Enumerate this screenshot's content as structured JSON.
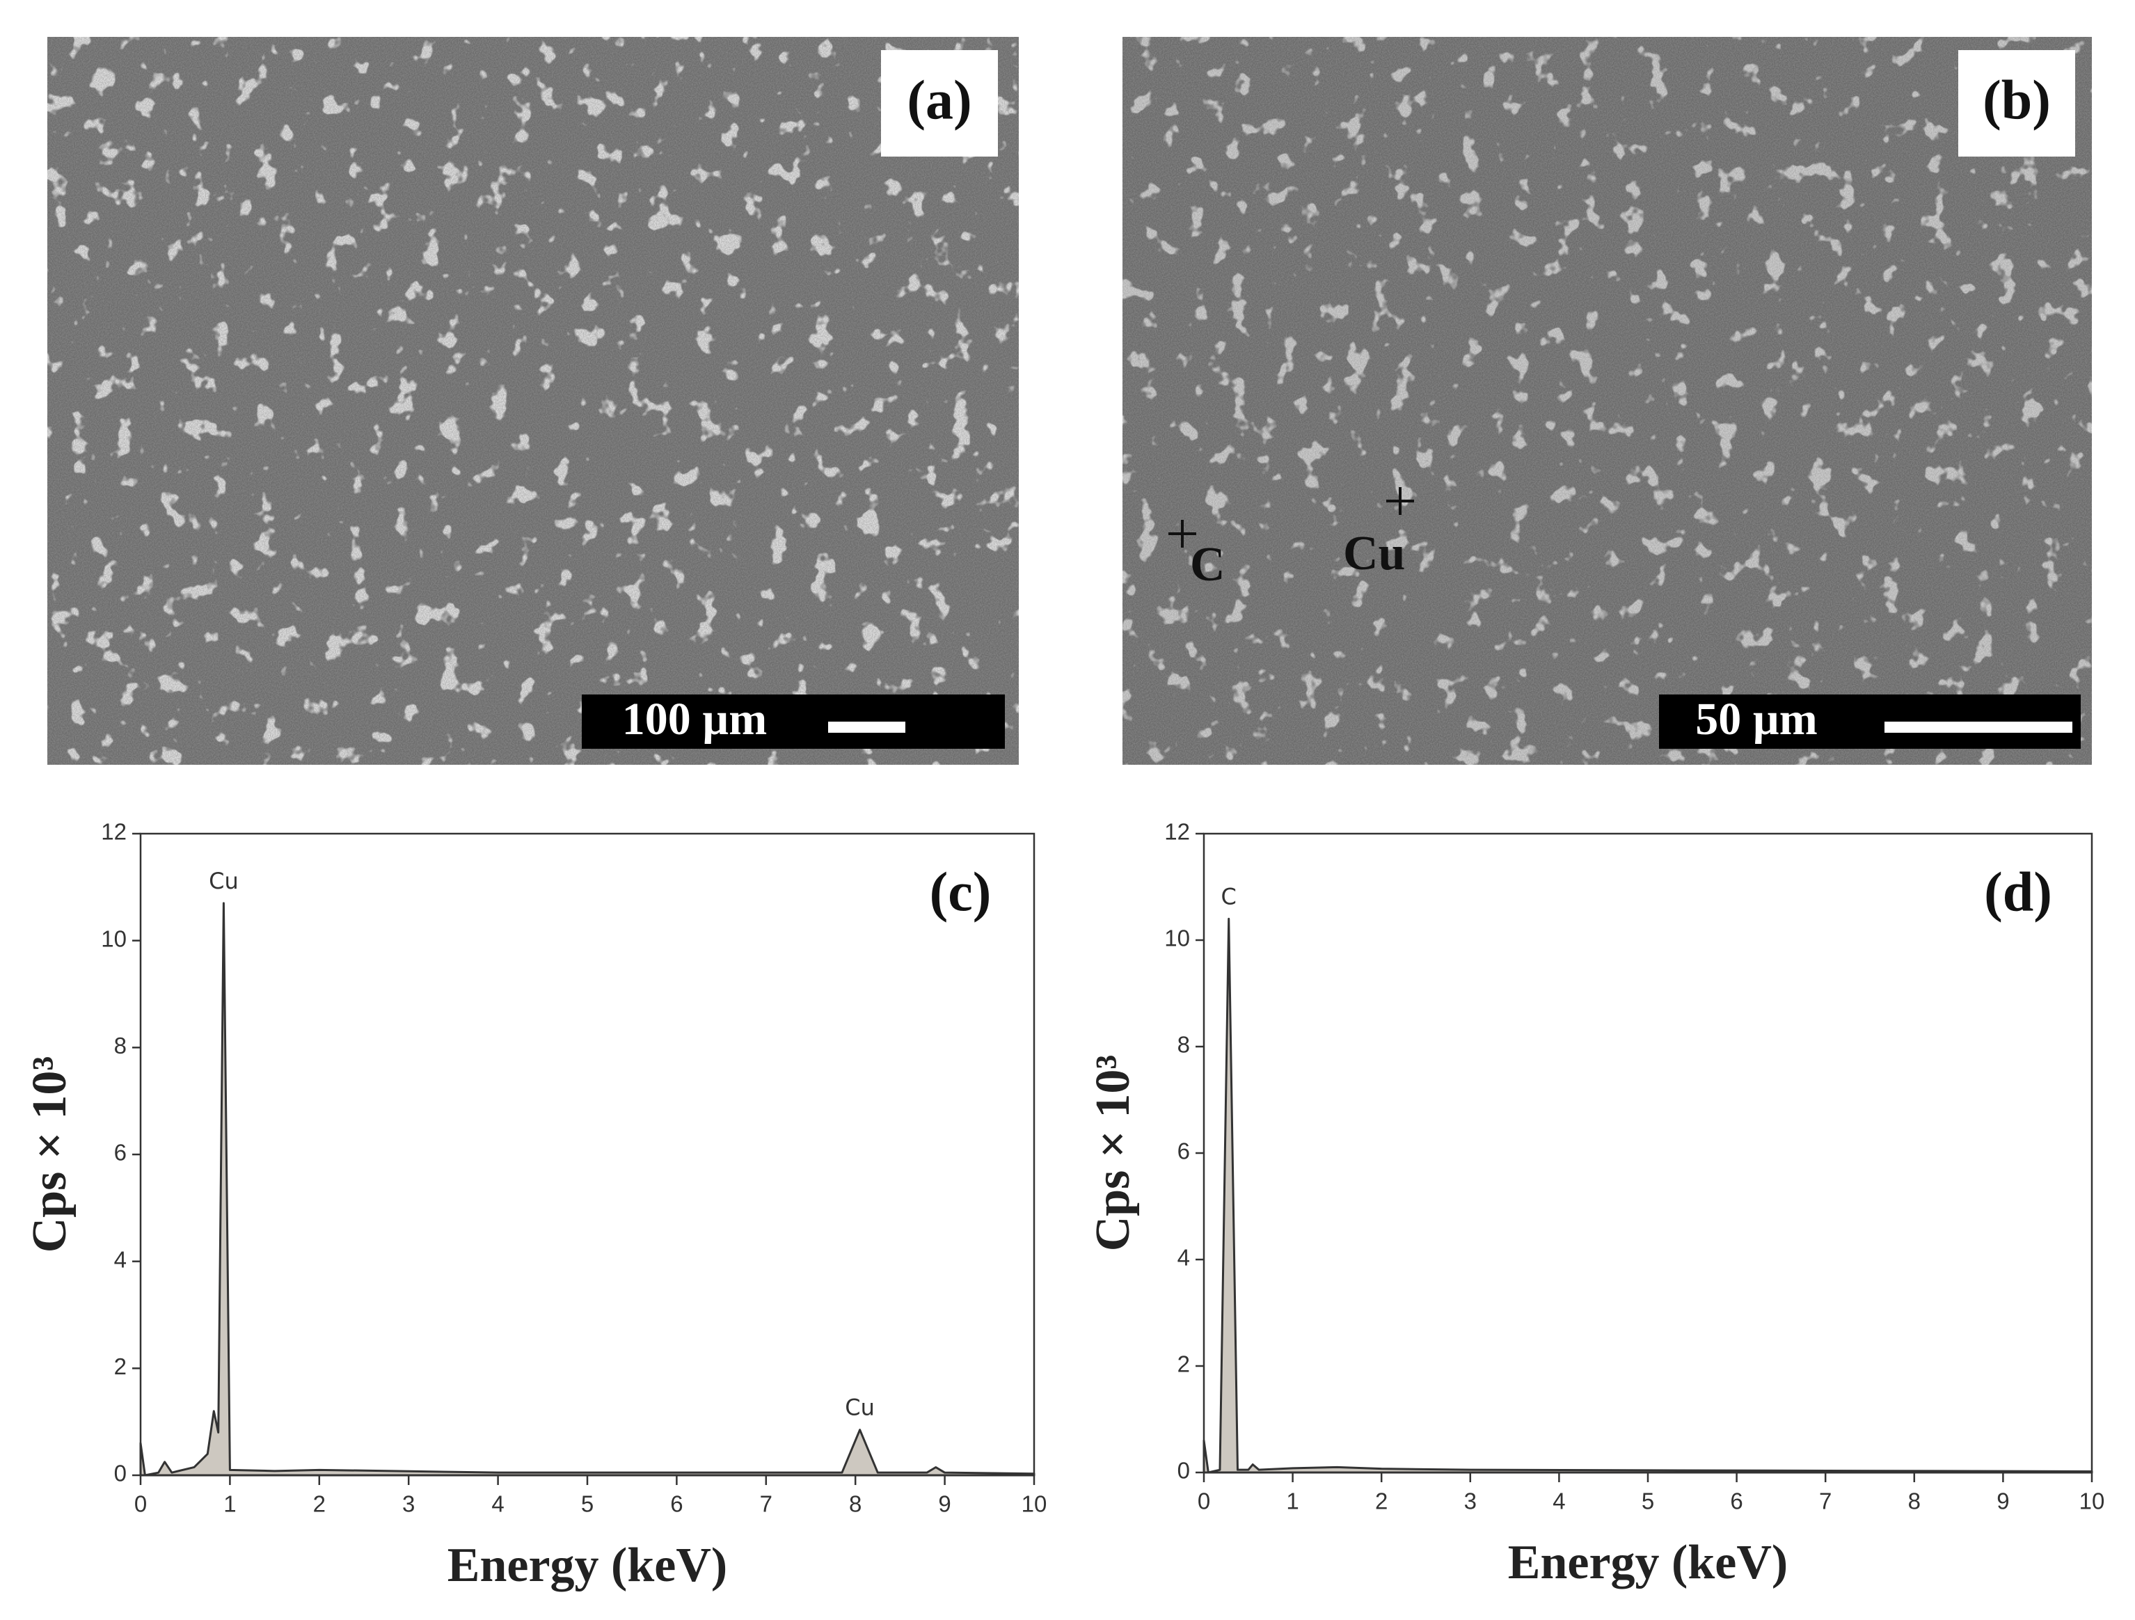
{
  "images": [
    {
      "label": "(a)",
      "scale_bar": "100 µm"
    },
    {
      "label": "(b)",
      "scale_bar": "50 µm",
      "markers": [
        {
          "text": "C"
        },
        {
          "text": "Cu"
        }
      ]
    }
  ],
  "chart_data": [
    {
      "type": "area",
      "label": "(c)",
      "xlabel": "Energy (keV)",
      "ylabel": "Cps × 10³",
      "color": "#cdc8c0",
      "x": [
        0,
        0.05,
        0.2,
        0.27,
        0.35,
        0.6,
        0.75,
        0.82,
        0.87,
        0.93,
        1.0,
        1.5,
        2.0,
        4.0,
        7.85,
        8.05,
        8.25,
        8.8,
        8.9,
        9.0,
        10
      ],
      "values": [
        0.6,
        0.0,
        0.05,
        0.25,
        0.05,
        0.15,
        0.4,
        1.2,
        0.8,
        10.7,
        0.1,
        0.08,
        0.1,
        0.05,
        0.05,
        0.85,
        0.05,
        0.05,
        0.15,
        0.05,
        0.03
      ],
      "annotations": [
        {
          "text": "Cu",
          "x": 0.93,
          "y": 10.7
        },
        {
          "text": "Cu",
          "x": 8.05,
          "y": 0.85
        }
      ],
      "xlim": [
        0,
        10
      ],
      "ylim": [
        0,
        12
      ],
      "xticks": [
        0,
        1,
        2,
        3,
        4,
        5,
        6,
        7,
        8,
        9,
        10
      ],
      "yticks": [
        0,
        2,
        4,
        6,
        8,
        10,
        12
      ]
    },
    {
      "type": "area",
      "label": "(d)",
      "xlabel": "Energy (keV)",
      "ylabel": "Cps × 10³",
      "color": "#cdc8c0",
      "x": [
        0,
        0.05,
        0.18,
        0.28,
        0.38,
        0.5,
        0.55,
        0.62,
        1.0,
        1.5,
        2.0,
        3.0,
        10
      ],
      "values": [
        0.6,
        0.0,
        0.05,
        10.4,
        0.05,
        0.05,
        0.15,
        0.05,
        0.08,
        0.1,
        0.07,
        0.05,
        0.02
      ],
      "annotations": [
        {
          "text": "C",
          "x": 0.28,
          "y": 10.4
        }
      ],
      "xlim": [
        0,
        10
      ],
      "ylim": [
        0,
        12
      ],
      "xticks": [
        0,
        1,
        2,
        3,
        4,
        5,
        6,
        7,
        8,
        9,
        10
      ],
      "yticks": [
        0,
        2,
        4,
        6,
        8,
        10,
        12
      ]
    }
  ]
}
